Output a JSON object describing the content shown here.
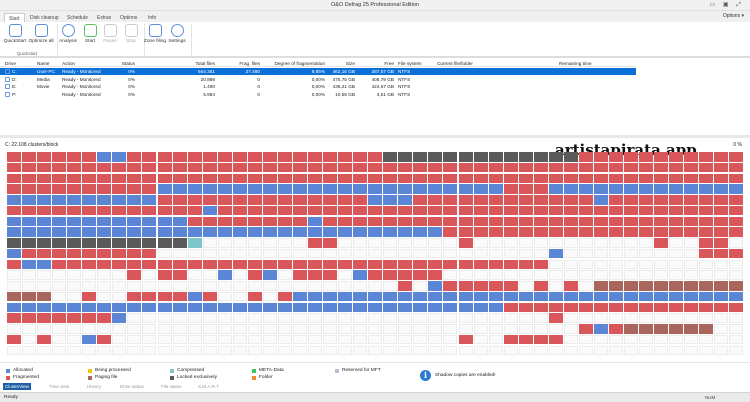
{
  "window": {
    "title": "O&O Defrag 25 Professional Edition",
    "controls": "▭ ▣ ⤢"
  },
  "tabs": [
    "Start",
    "Disk cleanup",
    "Schedule",
    "Extras",
    "Options",
    "Info"
  ],
  "options_menu": "Options ▾",
  "ribbon": {
    "buttons": [
      {
        "label": "QuickStart",
        "icon": "quickstart-icon"
      },
      {
        "label": "Optimize all",
        "icon": "optimize-icon"
      },
      {
        "label": "Analysis",
        "icon": "magnifier-icon"
      },
      {
        "label": "Start",
        "icon": "play-icon"
      },
      {
        "label": "Pause",
        "icon": "pause-icon"
      },
      {
        "label": "Stop",
        "icon": "stop-icon"
      },
      {
        "label": "Zone filing",
        "icon": "zone-icon"
      },
      {
        "label": "Settings",
        "icon": "settings-icon"
      }
    ],
    "group_label": "Quickstart"
  },
  "drives": {
    "columns": [
      "Drive",
      "Name",
      "Action",
      "Status",
      "Total files",
      "Frag. files",
      "Degree of fragmentation",
      "Size",
      "Free",
      "File system",
      "Current file/folder",
      "Remaining time"
    ],
    "rows": [
      [
        "C:",
        "User-PC",
        "Ready - Monitored",
        "0%",
        "664.381",
        "27.480",
        "8,85%",
        "462,16 GB",
        "287,57 GB",
        "NTFS",
        "",
        ""
      ],
      [
        "D:",
        "Media",
        "Ready - Monitored",
        "0%",
        "20.898",
        "0",
        "0,00%",
        "475,75 GB",
        "408,79 GB",
        "NTFS",
        "",
        ""
      ],
      [
        "E:",
        "Movie",
        "Ready - Monitored",
        "0%",
        "1.490",
        "0",
        "0,00%",
        "436,21 GB",
        "424,67 GB",
        "NTFS",
        "",
        ""
      ],
      [
        "P:",
        "",
        "Ready - Monitored",
        "0%",
        "5.984",
        "0",
        "0,00%",
        "10,55 GB",
        "3,61 GB",
        "NTFS",
        "",
        ""
      ]
    ]
  },
  "map": {
    "header": "C: 22.108 clusters/block",
    "percent": "0 %",
    "colors": {
      "R": "#d9575b",
      "B": "#5b86d6",
      "G": "#5a5a5a",
      "C": "#7cc6cc",
      "N": "#a8665c",
      "Y": "#f2c500",
      "M": "#3cc45a",
      "O": "#f08a2a",
      "L": "#c8b8d8"
    },
    "rows": [
      "RRRRRRBBRRRRRRRRRRRRRRRRRGGGGGGGGGGGGGRRRRRRRRRRR",
      "RRRRRRRRRRRRRRRRRRRRRRRRRRRRRRRRRRRRRRRRRRRRRRRRR",
      "RRRRRRRRRRRRRRRRRRRRRRRRRRRRRRRRRRRRRRRRRRRRRRRRR",
      "RRRRRRRRRRBBBBBBBBBBBBBBBBBBBBBBBRRRBBBBBBBBBBBBB",
      "BBBBBBBBBBRRRRRRRRRRRRRRBBBRRRRRRRRRRRRBRRRRRRRRR",
      "RRRRRRRRRRRRRBRRRRRRRRRRRRRRRRRRRRRRRRRRRRRRRRRRR",
      "BBBBBBBBBBBBRRRRRRRRBRRRRRRRRRRRRRRRRRRRRRRRRRRRR",
      "BBBBBBBBBBBBBBBBBBBBBBBBBBBBBRRRRRRRRRRRRRRRRRRRR",
      "GGGGGGGGGGGGC.......RR........R............R..RR.",
      "BRRRRRRRRR..........................B.........RRR",
      "RBBRRRRRRRRRRRRRRRRRRRRRRRRRRRRRRRRR.............",
      "........R.RR..B.RB.RRR.BRRRRR....................",
      "..........................R.BRRRRR.R.R.NNNNNNNNNN",
      "NNN..R..RRRRBR..R.RBBBBBBBBBBBBBBBBBBBBBBBBBBBBBB",
      "BBBBBBBBBBBBBBBBBBBBBBBBBBBBBBBBBRRRRRRRRRRRRRRRR",
      "RRRRRRRB............................R............",
      "......................................RBRNNNNNN..",
      "R.R..BR.......................R..RRRR...........",
      "................................................."
    ]
  },
  "legend": [
    {
      "label": "Allocated",
      "color": "#5b86d6"
    },
    {
      "label": "Fragmented",
      "color": "#d9575b"
    },
    {
      "label": "Being processed",
      "color": "#f2c500"
    },
    {
      "label": "Paging file",
      "color": "#a8665c"
    },
    {
      "label": "Compressed",
      "color": "#7cc6cc"
    },
    {
      "label": "Locked exclusively",
      "color": "#5a5a5a"
    },
    {
      "label": "META-Data",
      "color": "#3cc45a"
    },
    {
      "label": "Folder",
      "color": "#f08a2a"
    },
    {
      "label": "Reserved for MFT",
      "color": "#c8b8d8"
    }
  ],
  "shadow_copies": "Shadow copies are enabled!",
  "view_tabs": [
    "ClusterView",
    "Time view",
    "History",
    "Drive status",
    "File status",
    "S.M.A.R.T."
  ],
  "status": {
    "text": "Ready",
    "num": "NUM"
  },
  "watermark": "artistapirata.app"
}
